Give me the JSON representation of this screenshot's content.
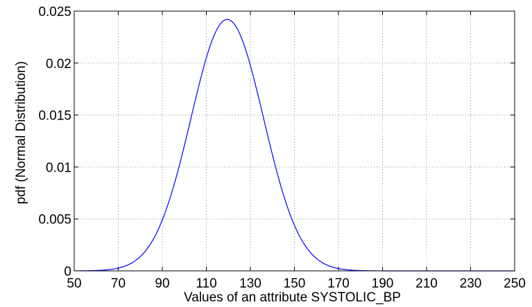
{
  "chart_data": {
    "type": "line",
    "title": "",
    "xlabel": "Values of an attribute SYSTOLIC_BP",
    "ylabel": "pdf (Normal Distribution)",
    "xlim": [
      50,
      250
    ],
    "ylim": [
      0,
      0.025
    ],
    "x_ticks": [
      50,
      70,
      90,
      110,
      130,
      150,
      170,
      190,
      210,
      230,
      250
    ],
    "x_tick_labels": [
      "50",
      "70",
      "90",
      "110",
      "130",
      "150",
      "170",
      "190",
      "210",
      "230",
      "250"
    ],
    "y_ticks": [
      0,
      0.005,
      0.01,
      0.015,
      0.02,
      0.025
    ],
    "y_tick_labels": [
      "0",
      "0.005",
      "0.01",
      "0.015",
      "0.02",
      "0.025"
    ],
    "grid": true,
    "legend": "none",
    "series": [
      {
        "color": "#0000ff",
        "distribution": "normal",
        "mean": 119.5,
        "std": 16.5,
        "x_range": [
          50,
          250
        ],
        "peak_pdf": 0.0242
      }
    ]
  }
}
